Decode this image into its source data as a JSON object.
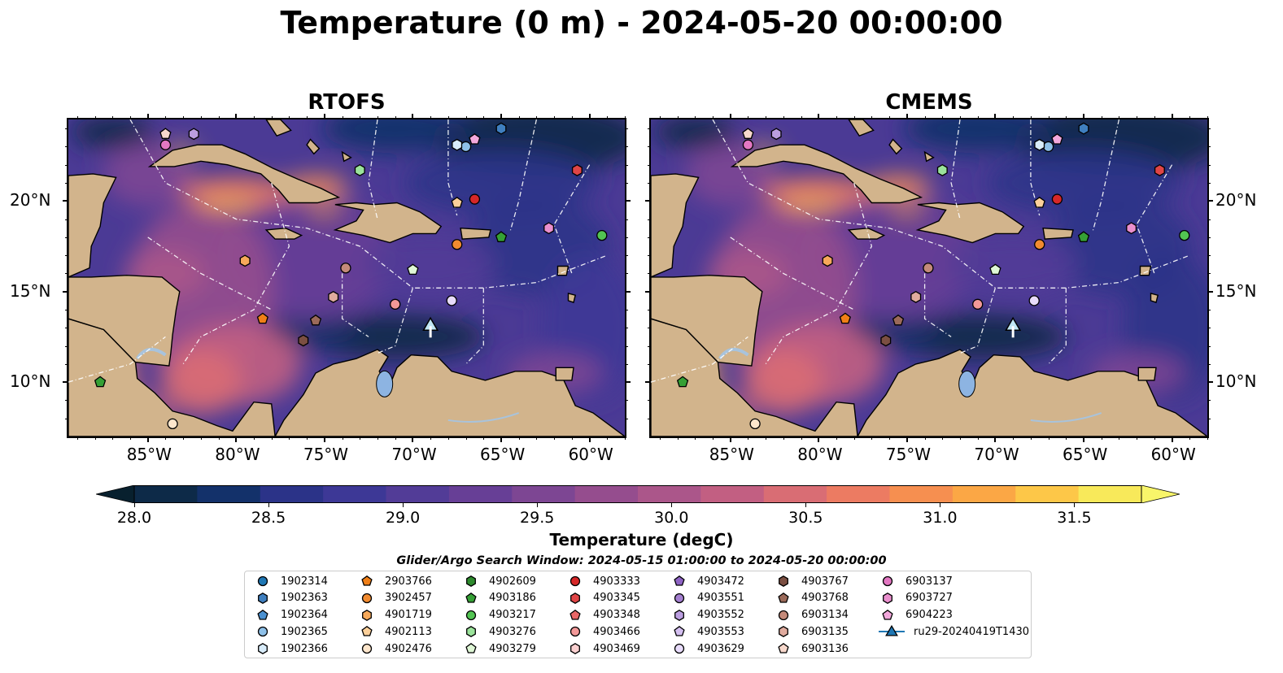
{
  "title": "Temperature (0 m) - 2024-05-20 00:00:00",
  "panels": [
    {
      "title": "RTOFS",
      "variant": "rtofs"
    },
    {
      "title": "CMEMS",
      "variant": "cmems"
    }
  ],
  "lat_labels": [
    "20°N",
    "15°N",
    "10°N"
  ],
  "lon_labels": [
    "85°W",
    "80°W",
    "75°W",
    "70°W",
    "65°W",
    "60°W"
  ],
  "map_extent": {
    "lon": [
      -89.5,
      -58.0
    ],
    "lat": [
      7.0,
      24.5
    ]
  },
  "land_color": "#d2b48c",
  "lake_color": "#8db4e2",
  "colorbar": {
    "label": "Temperature (degC)",
    "ticks": [
      "28.0",
      "28.5",
      "29.0",
      "29.5",
      "30.0",
      "30.5",
      "31.0",
      "31.5"
    ],
    "min": 28.0,
    "max": 31.5,
    "step": 0.25,
    "colors": [
      "#0d2a48",
      "#13316a",
      "#2b3388",
      "#3d3896",
      "#523c97",
      "#673f96",
      "#7d4693",
      "#954d8e",
      "#ab568a",
      "#c25f82",
      "#d96d74",
      "#ec7b62",
      "#f68f50",
      "#fba745",
      "#fdc748",
      "#f8e95a"
    ],
    "under_color": "#08202e",
    "over_color": "#f8f56a"
  },
  "search_window": "Glider/Argo Search Window: 2024-05-15 01:00:00 to 2024-05-20 00:00:00",
  "legend": [
    {
      "label": "1902314",
      "marker": "circle",
      "color": "#1f77b4"
    },
    {
      "label": "1902363",
      "marker": "hexagon",
      "color": "#3f7fbf"
    },
    {
      "label": "1902364",
      "marker": "pentagon",
      "color": "#4a90d0"
    },
    {
      "label": "1902365",
      "marker": "circle",
      "color": "#8ec0e8"
    },
    {
      "label": "1902366",
      "marker": "hexagon",
      "color": "#d8ecfa"
    },
    {
      "label": "2903766",
      "marker": "pentagon",
      "color": "#f07f17"
    },
    {
      "label": "3902457",
      "marker": "circle",
      "color": "#f28b30"
    },
    {
      "label": "4901719",
      "marker": "hexagon",
      "color": "#f7a95a"
    },
    {
      "label": "4902113",
      "marker": "pentagon",
      "color": "#fcd09a"
    },
    {
      "label": "4902476",
      "marker": "circle",
      "color": "#fde6cc"
    },
    {
      "label": "4902609",
      "marker": "hexagon",
      "color": "#2e8b2e"
    },
    {
      "label": "4903186",
      "marker": "pentagon",
      "color": "#35a035"
    },
    {
      "label": "4903217",
      "marker": "circle",
      "color": "#52c452"
    },
    {
      "label": "4903276",
      "marker": "hexagon",
      "color": "#9be39b"
    },
    {
      "label": "4903279",
      "marker": "pentagon",
      "color": "#dff7d6"
    },
    {
      "label": "4903333",
      "marker": "circle",
      "color": "#d62728"
    },
    {
      "label": "4903345",
      "marker": "hexagon",
      "color": "#e04546"
    },
    {
      "label": "4903348",
      "marker": "pentagon",
      "color": "#e86767"
    },
    {
      "label": "4903466",
      "marker": "circle",
      "color": "#f29898"
    },
    {
      "label": "4903469",
      "marker": "hexagon",
      "color": "#fbd0d0"
    },
    {
      "label": "4903472",
      "marker": "pentagon",
      "color": "#8e63c4"
    },
    {
      "label": "4903551",
      "marker": "circle",
      "color": "#a47fd0"
    },
    {
      "label": "4903552",
      "marker": "hexagon",
      "color": "#bb9ee0"
    },
    {
      "label": "4903553",
      "marker": "pentagon",
      "color": "#d4bff0"
    },
    {
      "label": "4903629",
      "marker": "circle",
      "color": "#e8dcfb"
    },
    {
      "label": "4903767",
      "marker": "hexagon",
      "color": "#7b4f42"
    },
    {
      "label": "4903768",
      "marker": "pentagon",
      "color": "#9b6a5a"
    },
    {
      "label": "6903134",
      "marker": "circle",
      "color": "#c48a7a"
    },
    {
      "label": "6903135",
      "marker": "hexagon",
      "color": "#e0ab9e"
    },
    {
      "label": "6903136",
      "marker": "pentagon",
      "color": "#f7d8cc"
    },
    {
      "label": "6903137",
      "marker": "circle",
      "color": "#e377c2"
    },
    {
      "label": "6903727",
      "marker": "hexagon",
      "color": "#ea8fce"
    },
    {
      "label": "6904223",
      "marker": "pentagon",
      "color": "#f3a8dc"
    },
    {
      "label": "ru29-20240419T1430",
      "marker": "triangle-line",
      "color": "#1f77b4"
    }
  ],
  "floats": [
    {
      "id": "1902363",
      "lon": -65.0,
      "lat": 24.0
    },
    {
      "id": "1902365",
      "lon": -67.0,
      "lat": 23.0
    },
    {
      "id": "1902366",
      "lon": -67.5,
      "lat": 23.1
    },
    {
      "id": "6904223",
      "lon": -66.5,
      "lat": 23.4
    },
    {
      "id": "6903136",
      "lon": -84.0,
      "lat": 23.7
    },
    {
      "id": "4903552",
      "lon": -82.4,
      "lat": 23.7
    },
    {
      "id": "6903137",
      "lon": -84.0,
      "lat": 23.1
    },
    {
      "id": "4903276",
      "lon": -73.0,
      "lat": 21.7
    },
    {
      "id": "4903345",
      "lon": -60.7,
      "lat": 21.7
    },
    {
      "id": "4902113",
      "lon": -67.5,
      "lat": 19.9
    },
    {
      "id": "4903333",
      "lon": -66.5,
      "lat": 20.1
    },
    {
      "id": "3902457",
      "lon": -67.5,
      "lat": 17.6
    },
    {
      "id": "4903186",
      "lon": -65.0,
      "lat": 18.0
    },
    {
      "id": "6903727",
      "lon": -62.3,
      "lat": 18.5
    },
    {
      "id": "4903217",
      "lon": -59.3,
      "lat": 18.1
    },
    {
      "id": "4901719",
      "lon": -79.5,
      "lat": 16.7
    },
    {
      "id": "6903134",
      "lon": -73.8,
      "lat": 16.3
    },
    {
      "id": "4903279",
      "lon": -70.0,
      "lat": 16.2
    },
    {
      "id": "6903135",
      "lon": -74.5,
      "lat": 14.7
    },
    {
      "id": "4903466",
      "lon": -71.0,
      "lat": 14.3
    },
    {
      "id": "4903629",
      "lon": -67.8,
      "lat": 14.5
    },
    {
      "id": "2903766",
      "lon": -78.5,
      "lat": 13.5
    },
    {
      "id": "4903768",
      "lon": -75.5,
      "lat": 13.4
    },
    {
      "id": "4903767",
      "lon": -76.2,
      "lat": 12.3
    },
    {
      "id": "4903186",
      "lon": -87.7,
      "lat": 10.0
    },
    {
      "id": "4902476",
      "lon": -83.6,
      "lat": 7.7
    }
  ],
  "glider": {
    "id": "ru29-20240419T1430",
    "lon": -69.0,
    "lat": 13.0
  }
}
